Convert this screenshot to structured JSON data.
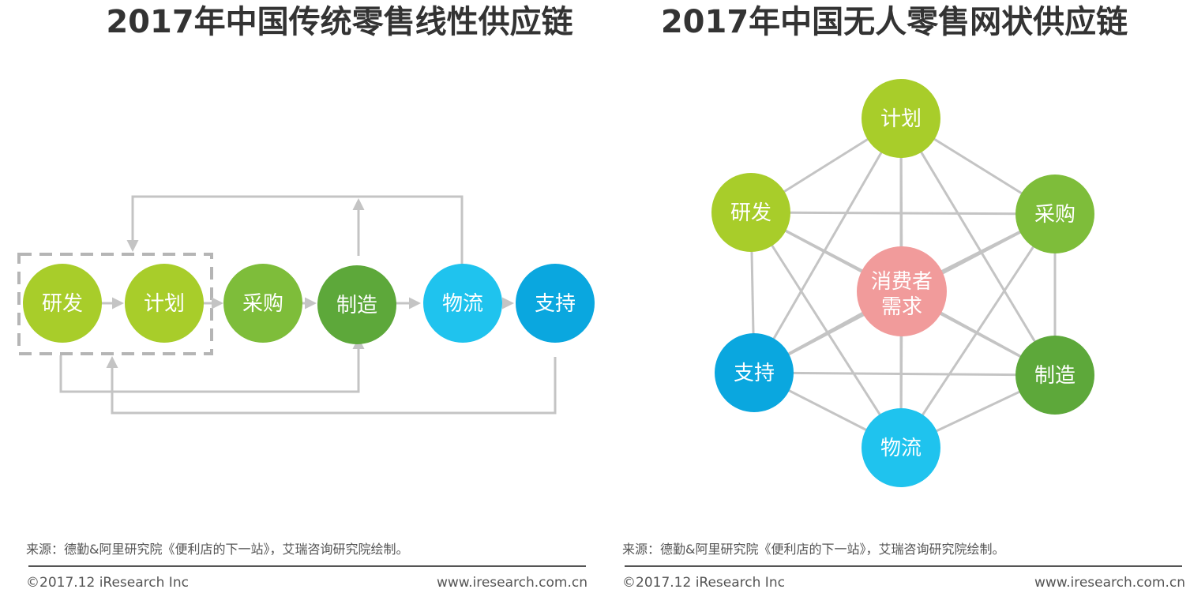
{
  "left": {
    "title": "2017年中国传统零售线性供应链",
    "nodes": [
      {
        "id": "rd",
        "label": "研发",
        "color": "#a8cd2a"
      },
      {
        "id": "plan",
        "label": "计划",
        "color": "#a8cd2a"
      },
      {
        "id": "purchase",
        "label": "采购",
        "color": "#7ebd3a"
      },
      {
        "id": "make",
        "label": "制造",
        "color": "#5da83a"
      },
      {
        "id": "logistics",
        "label": "物流",
        "color": "#1fc3ee"
      },
      {
        "id": "support",
        "label": "支持",
        "color": "#0aa7df"
      }
    ],
    "source": "来源：德勤&阿里研究院《便利店的下一站》，艾瑞咨询研究院绘制。",
    "copyright": "©2017.12 iResearch Inc",
    "website": "www.iresearch.com.cn"
  },
  "right": {
    "title": "2017年中国无人零售网状供应链",
    "center": {
      "line1": "消费者",
      "line2": "需求",
      "color": "#f19b9b"
    },
    "nodes": [
      {
        "id": "plan",
        "label": "计划",
        "color": "#a8cd2a"
      },
      {
        "id": "purchase",
        "label": "采购",
        "color": "#7ebd3a"
      },
      {
        "id": "make",
        "label": "制造",
        "color": "#5da83a"
      },
      {
        "id": "logistics",
        "label": "物流",
        "color": "#1fc3ee"
      },
      {
        "id": "support",
        "label": "支持",
        "color": "#0aa7df"
      },
      {
        "id": "rd",
        "label": "研发",
        "color": "#a8cd2a"
      }
    ],
    "source": "来源：德勤&阿里研究院《便利店的下一站》，艾瑞咨询研究院绘制。",
    "copyright": "©2017.12 iResearch Inc",
    "website": "www.iresearch.com.cn"
  },
  "colors": {
    "title": "#333333",
    "connector": "#c4c4c4",
    "dashed_box": "#b5b5b5",
    "footer_text": "#555555"
  }
}
